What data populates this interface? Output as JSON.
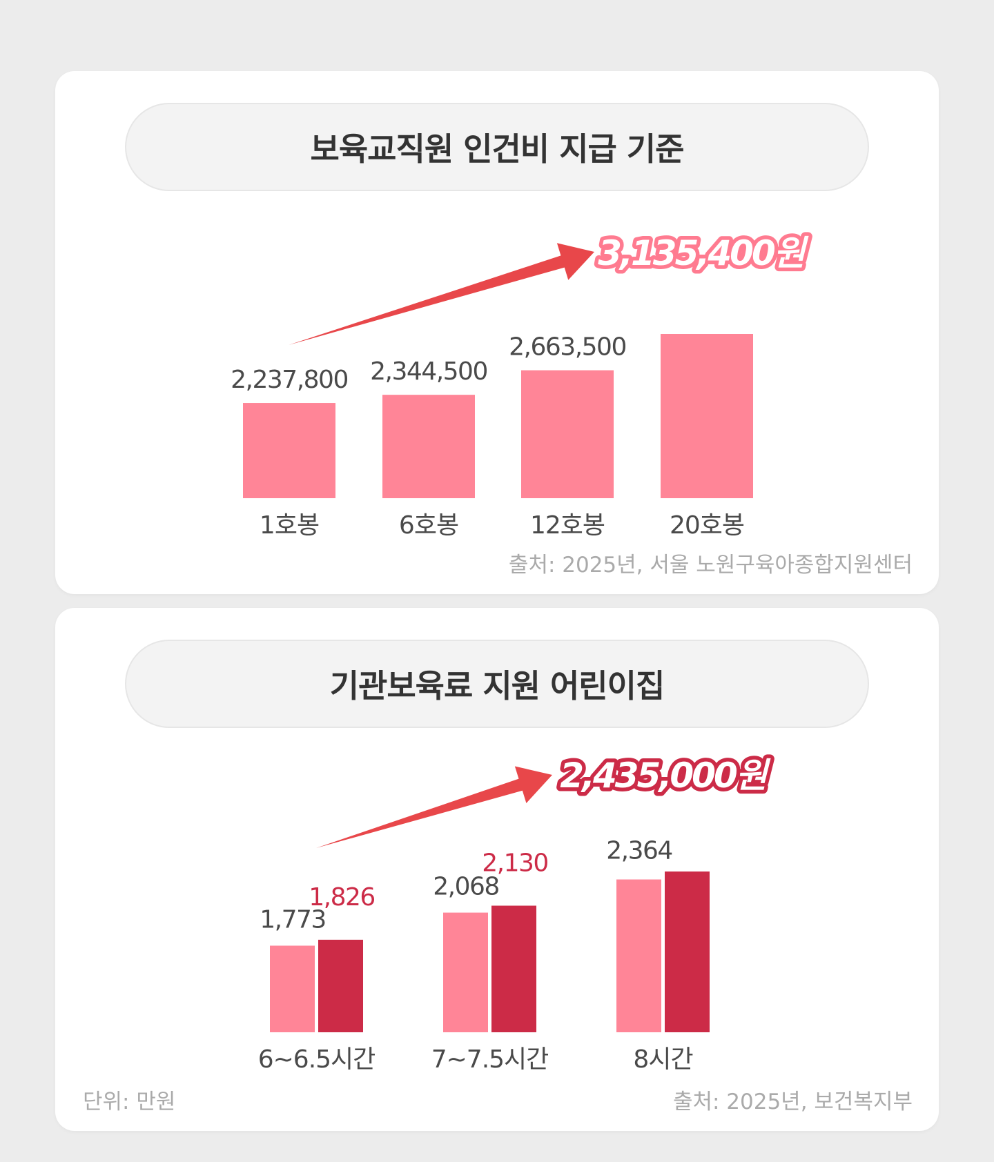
{
  "colors": {
    "bar_light": "#ff8597",
    "bar_dark": "#cc2b47",
    "arrow": "#e8474a",
    "label_dark": "#4a4a4a",
    "label_red": "#cc2b47",
    "highlight1": "#ff7b90",
    "highlight2": "#cc2b47"
  },
  "card1": {
    "title": "보육교직원 인건비 지급 기준",
    "highlight_value": "3,135,400원",
    "source": "출처: 2025년, 서울 노원구육아종합지원센터"
  },
  "card2": {
    "title": "기관보육료 지원 어린이집",
    "highlight_value": "2,435,000원",
    "unit": "단위: 만원",
    "source": "출처: 2025년, 보건복지부"
  },
  "chart_data": [
    {
      "type": "bar",
      "title": "보육교직원 인건비 지급 기준",
      "categories": [
        "1호봉",
        "6호봉",
        "12호봉",
        "20호봉"
      ],
      "values": [
        2237800,
        2344500,
        2663500,
        3135400
      ],
      "value_labels": [
        "2,237,800",
        "2,344,500",
        "2,663,500",
        ""
      ],
      "ylim": [
        1000000,
        3400000
      ],
      "grid": false,
      "legend": "none"
    },
    {
      "type": "bar",
      "title": "기관보육료 지원 어린이집",
      "categories": [
        "6~6.5시간",
        "7~7.5시간",
        "8시간"
      ],
      "series": [
        {
          "values": [
            1773,
            2068,
            2364
          ],
          "labels": [
            "1,773",
            "2,068",
            "2,364"
          ]
        },
        {
          "values": [
            1826,
            2130,
            2435
          ],
          "labels": [
            "1,826",
            "2,130",
            ""
          ]
        }
      ],
      "ylim": [
        1000,
        2650
      ],
      "grid": false,
      "legend": "none"
    }
  ]
}
